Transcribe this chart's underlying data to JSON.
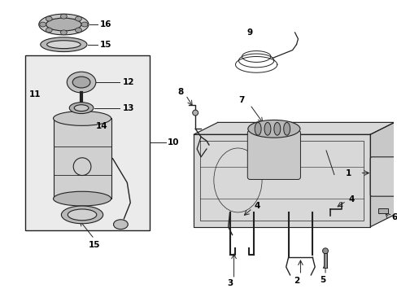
{
  "background_color": "#ffffff",
  "figure_size": [
    4.89,
    3.6
  ],
  "dpi": 100,
  "line_color": "#222222",
  "text_color": "#000000",
  "box_fill": "#ebebeb",
  "part_fill": "#cccccc",
  "tank_fill": "#e0e0e0"
}
